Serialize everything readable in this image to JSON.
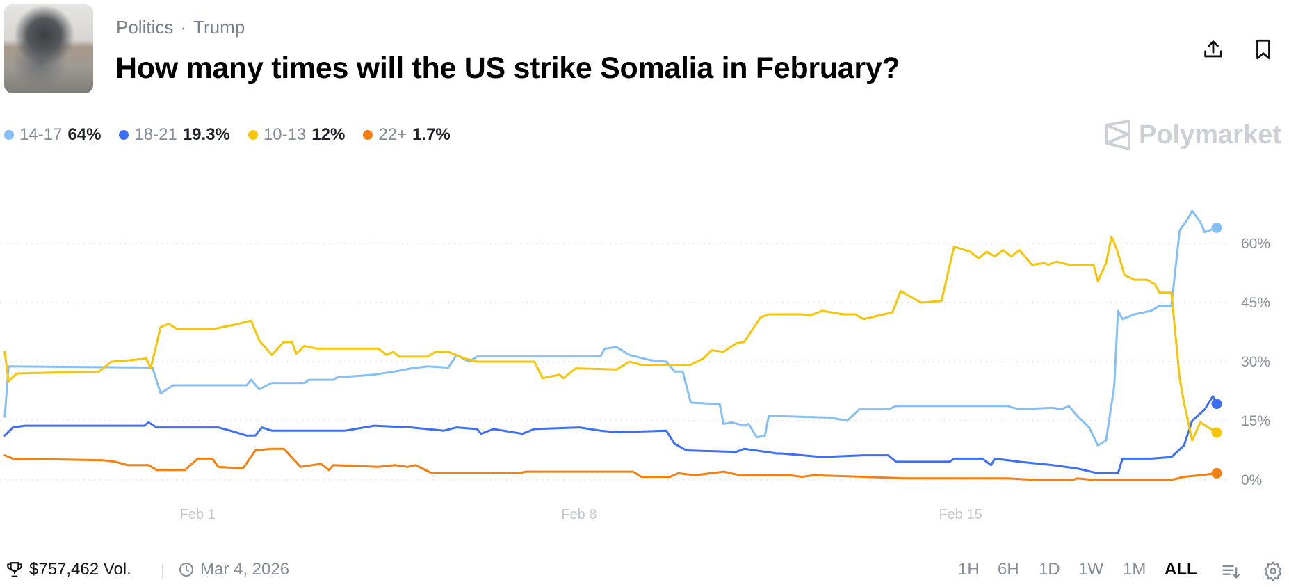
{
  "header": {
    "category": "Politics",
    "tag": "Trump",
    "separator": "·",
    "title": "How many times will the US strike Somalia in February?",
    "brand": "Polymarket"
  },
  "legend": [
    {
      "name": "14-17",
      "value": "64%",
      "color": "#85bff8"
    },
    {
      "name": "18-21",
      "value": "19.3%",
      "color": "#3d6ff5"
    },
    {
      "name": "10-13",
      "value": "12%",
      "color": "#f7c505"
    },
    {
      "name": "22+",
      "value": "1.7%",
      "color": "#f77f0f"
    }
  ],
  "footer": {
    "volume": "$757,462 Vol.",
    "date": "Mar 4, 2026",
    "timeframes": [
      "1H",
      "6H",
      "1D",
      "1W",
      "1M",
      "ALL"
    ],
    "active_timeframe": "ALL"
  },
  "chart_data": {
    "type": "line",
    "x_unit": "days relative to Feb 1",
    "xlim": [
      -3.55,
      18.7
    ],
    "ylim": [
      0,
      60
    ],
    "yticks": [
      0,
      15,
      30,
      45,
      60
    ],
    "ytick_labels": [
      "0%",
      "15%",
      "30%",
      "45%",
      "60%"
    ],
    "xticks": [
      0,
      7,
      14
    ],
    "xtick_labels": [
      "Feb 1",
      "Feb 8",
      "Feb 15"
    ],
    "grid": true,
    "legend_position": "top-left",
    "series": [
      {
        "name": "14-17",
        "color": "#85bff8",
        "points": [
          [
            -3.54,
            16
          ],
          [
            -3.47,
            28.8
          ],
          [
            -0.83,
            28.5
          ],
          [
            -0.68,
            22
          ],
          [
            -0.45,
            24
          ],
          [
            0.9,
            24
          ],
          [
            0.98,
            25.4
          ],
          [
            1.13,
            23
          ],
          [
            1.36,
            24.6
          ],
          [
            1.96,
            24.6
          ],
          [
            2.04,
            25.4
          ],
          [
            2.49,
            25.4
          ],
          [
            2.56,
            26
          ],
          [
            3.24,
            26.7
          ],
          [
            3.62,
            27.5
          ],
          [
            3.92,
            28.3
          ],
          [
            4.22,
            28.8
          ],
          [
            4.6,
            28.5
          ],
          [
            4.75,
            31.7
          ],
          [
            4.98,
            30
          ],
          [
            5.13,
            31.3
          ],
          [
            7.39,
            31.3
          ],
          [
            7.47,
            33.3
          ],
          [
            7.69,
            33.7
          ],
          [
            7.92,
            31.7
          ],
          [
            8.3,
            30.4
          ],
          [
            8.6,
            30
          ],
          [
            8.75,
            27.5
          ],
          [
            8.9,
            27.5
          ],
          [
            9.05,
            19.6
          ],
          [
            9.58,
            19.2
          ],
          [
            9.65,
            14.2
          ],
          [
            9.8,
            14.6
          ],
          [
            10.03,
            13.75
          ],
          [
            10.11,
            14.2
          ],
          [
            10.26,
            10.8
          ],
          [
            10.41,
            11.2
          ],
          [
            10.48,
            16.25
          ],
          [
            11.61,
            15.8
          ],
          [
            11.92,
            15
          ],
          [
            12.14,
            17.9
          ],
          [
            12.67,
            17.9
          ],
          [
            12.82,
            18.75
          ],
          [
            14.86,
            18.75
          ],
          [
            15.08,
            17.9
          ],
          [
            15.69,
            18.3
          ],
          [
            15.84,
            17.9
          ],
          [
            15.99,
            18.75
          ],
          [
            16.14,
            16.25
          ],
          [
            16.36,
            13.3
          ],
          [
            16.52,
            8.75
          ],
          [
            16.67,
            10
          ],
          [
            16.82,
            23.75
          ],
          [
            16.89,
            42.9
          ],
          [
            16.97,
            40.8
          ],
          [
            17.19,
            42
          ],
          [
            17.5,
            42.9
          ],
          [
            17.65,
            44.2
          ],
          [
            17.87,
            44.2
          ],
          [
            18.02,
            63.3
          ],
          [
            18.17,
            66.25
          ],
          [
            18.25,
            68.3
          ],
          [
            18.4,
            65.4
          ],
          [
            18.48,
            62.9
          ],
          [
            18.7,
            64
          ]
        ]
      },
      {
        "name": "18-21",
        "color": "#3d6ff5",
        "points": [
          [
            -3.54,
            11.25
          ],
          [
            -3.39,
            13.3
          ],
          [
            -3.17,
            13.75
          ],
          [
            -0.98,
            13.75
          ],
          [
            -0.9,
            14.6
          ],
          [
            -0.75,
            13.3
          ],
          [
            0.38,
            13.3
          ],
          [
            0.6,
            12.5
          ],
          [
            0.9,
            11.25
          ],
          [
            1.06,
            11.25
          ],
          [
            1.18,
            13.3
          ],
          [
            1.36,
            12.5
          ],
          [
            2.71,
            12.5
          ],
          [
            3.24,
            13.75
          ],
          [
            3.92,
            13.3
          ],
          [
            4.52,
            12.5
          ],
          [
            4.75,
            13.3
          ],
          [
            5.13,
            12.9
          ],
          [
            5.2,
            11.7
          ],
          [
            5.43,
            12.9
          ],
          [
            5.96,
            11.7
          ],
          [
            6.18,
            12.9
          ],
          [
            7.01,
            13.3
          ],
          [
            7.39,
            12.5
          ],
          [
            7.69,
            12.1
          ],
          [
            8.6,
            12.5
          ],
          [
            8.75,
            9.2
          ],
          [
            8.97,
            7.5
          ],
          [
            9.88,
            7.1
          ],
          [
            10.03,
            7.9
          ],
          [
            10.63,
            6.7
          ],
          [
            10.71,
            6.7
          ],
          [
            11.46,
            5.8
          ],
          [
            12.22,
            6.25
          ],
          [
            12.67,
            6.25
          ],
          [
            12.82,
            4.6
          ],
          [
            13.8,
            4.6
          ],
          [
            13.88,
            5.4
          ],
          [
            14.4,
            5.4
          ],
          [
            14.56,
            3.75
          ],
          [
            14.63,
            5.4
          ],
          [
            15.08,
            4.6
          ],
          [
            15.69,
            3.75
          ],
          [
            16.14,
            2.9
          ],
          [
            16.52,
            1.7
          ],
          [
            16.89,
            1.7
          ],
          [
            16.97,
            5.4
          ],
          [
            17.5,
            5.4
          ],
          [
            17.87,
            5.8
          ],
          [
            18.1,
            8.75
          ],
          [
            18.25,
            15
          ],
          [
            18.48,
            17.9
          ],
          [
            18.63,
            21.25
          ],
          [
            18.7,
            19.3
          ]
        ]
      },
      {
        "name": "10-13",
        "color": "#f7c505",
        "points": [
          [
            -3.54,
            32.5
          ],
          [
            -3.47,
            25
          ],
          [
            -3.32,
            27
          ],
          [
            -1.81,
            27.5
          ],
          [
            -1.58,
            30
          ],
          [
            -1.21,
            30.4
          ],
          [
            -0.94,
            30.8
          ],
          [
            -0.86,
            28.3
          ],
          [
            -0.68,
            38.75
          ],
          [
            -0.53,
            39.6
          ],
          [
            -0.38,
            38.3
          ],
          [
            0.3,
            38.3
          ],
          [
            0.75,
            39.6
          ],
          [
            0.98,
            40.4
          ],
          [
            1.13,
            35.4
          ],
          [
            1.36,
            31.7
          ],
          [
            1.58,
            35
          ],
          [
            1.73,
            35
          ],
          [
            1.81,
            32
          ],
          [
            1.96,
            34
          ],
          [
            2.19,
            33.3
          ],
          [
            3.32,
            33.3
          ],
          [
            3.47,
            31.7
          ],
          [
            3.59,
            32.5
          ],
          [
            3.7,
            31.25
          ],
          [
            4.22,
            31.25
          ],
          [
            4.37,
            32.5
          ],
          [
            4.6,
            32.5
          ],
          [
            4.9,
            30.8
          ],
          [
            5.13,
            30
          ],
          [
            6.18,
            30
          ],
          [
            6.33,
            25.8
          ],
          [
            6.64,
            26.7
          ],
          [
            6.71,
            25.8
          ],
          [
            6.94,
            28.3
          ],
          [
            7.69,
            28
          ],
          [
            7.92,
            30
          ],
          [
            8.14,
            29.2
          ],
          [
            9.05,
            29.2
          ],
          [
            9.28,
            30.8
          ],
          [
            9.43,
            32.9
          ],
          [
            9.65,
            32.5
          ],
          [
            9.88,
            34.6
          ],
          [
            10.03,
            35
          ],
          [
            10.33,
            41.25
          ],
          [
            10.48,
            42
          ],
          [
            11.09,
            42
          ],
          [
            11.24,
            41.7
          ],
          [
            11.46,
            42.9
          ],
          [
            11.84,
            42
          ],
          [
            12.07,
            42
          ],
          [
            12.22,
            40.8
          ],
          [
            12.75,
            42.5
          ],
          [
            12.9,
            47.9
          ],
          [
            13.12,
            46.2
          ],
          [
            13.27,
            45
          ],
          [
            13.65,
            45.4
          ],
          [
            13.88,
            59.2
          ],
          [
            14.18,
            57.9
          ],
          [
            14.33,
            56.25
          ],
          [
            14.48,
            57.9
          ],
          [
            14.63,
            56.7
          ],
          [
            14.78,
            58.3
          ],
          [
            14.93,
            56.7
          ],
          [
            15.08,
            58.3
          ],
          [
            15.31,
            54.6
          ],
          [
            15.54,
            55
          ],
          [
            15.61,
            54.6
          ],
          [
            15.76,
            55.4
          ],
          [
            15.99,
            54.6
          ],
          [
            16.44,
            54.6
          ],
          [
            16.52,
            50.4
          ],
          [
            16.67,
            55
          ],
          [
            16.77,
            61.7
          ],
          [
            16.86,
            58.75
          ],
          [
            17.01,
            52
          ],
          [
            17.19,
            50.8
          ],
          [
            17.42,
            50.8
          ],
          [
            17.57,
            49.6
          ],
          [
            17.65,
            47.5
          ],
          [
            17.87,
            47.5
          ],
          [
            18.02,
            25.8
          ],
          [
            18.1,
            19.6
          ],
          [
            18.25,
            10
          ],
          [
            18.4,
            14.6
          ],
          [
            18.55,
            13.3
          ],
          [
            18.7,
            12
          ]
        ]
      },
      {
        "name": "22+",
        "color": "#f77f0f",
        "points": [
          [
            -3.54,
            6.25
          ],
          [
            -3.39,
            5.4
          ],
          [
            -1.73,
            5
          ],
          [
            -1.51,
            4.6
          ],
          [
            -1.28,
            3.75
          ],
          [
            -0.9,
            3.75
          ],
          [
            -0.75,
            2.5
          ],
          [
            -0.23,
            2.5
          ],
          [
            0,
            5.4
          ],
          [
            0.27,
            5.4
          ],
          [
            0.38,
            3.3
          ],
          [
            0.83,
            2.9
          ],
          [
            1.06,
            7.5
          ],
          [
            1.36,
            7.9
          ],
          [
            1.58,
            7.9
          ],
          [
            1.89,
            3.3
          ],
          [
            2.26,
            4.1
          ],
          [
            2.41,
            2.5
          ],
          [
            2.49,
            3.75
          ],
          [
            3.32,
            3.3
          ],
          [
            3.62,
            3.75
          ],
          [
            3.85,
            3.3
          ],
          [
            4.0,
            3.75
          ],
          [
            4.3,
            1.7
          ],
          [
            5.88,
            1.7
          ],
          [
            6.03,
            2.1
          ],
          [
            7.99,
            2.1
          ],
          [
            8.14,
            0.8
          ],
          [
            8.67,
            0.8
          ],
          [
            8.82,
            1.7
          ],
          [
            9.13,
            1.2
          ],
          [
            9.65,
            2.1
          ],
          [
            9.95,
            1.2
          ],
          [
            10.86,
            1.2
          ],
          [
            11.09,
            0.8
          ],
          [
            11.31,
            1.2
          ],
          [
            12.22,
            0.8
          ],
          [
            12.97,
            0.4
          ],
          [
            14.86,
            0.4
          ],
          [
            15.38,
            0
          ],
          [
            16.06,
            0
          ],
          [
            16.14,
            0.4
          ],
          [
            16.44,
            0
          ],
          [
            17.87,
            0
          ],
          [
            18.1,
            0.8
          ],
          [
            18.4,
            1.2
          ],
          [
            18.7,
            1.7
          ]
        ]
      }
    ]
  }
}
